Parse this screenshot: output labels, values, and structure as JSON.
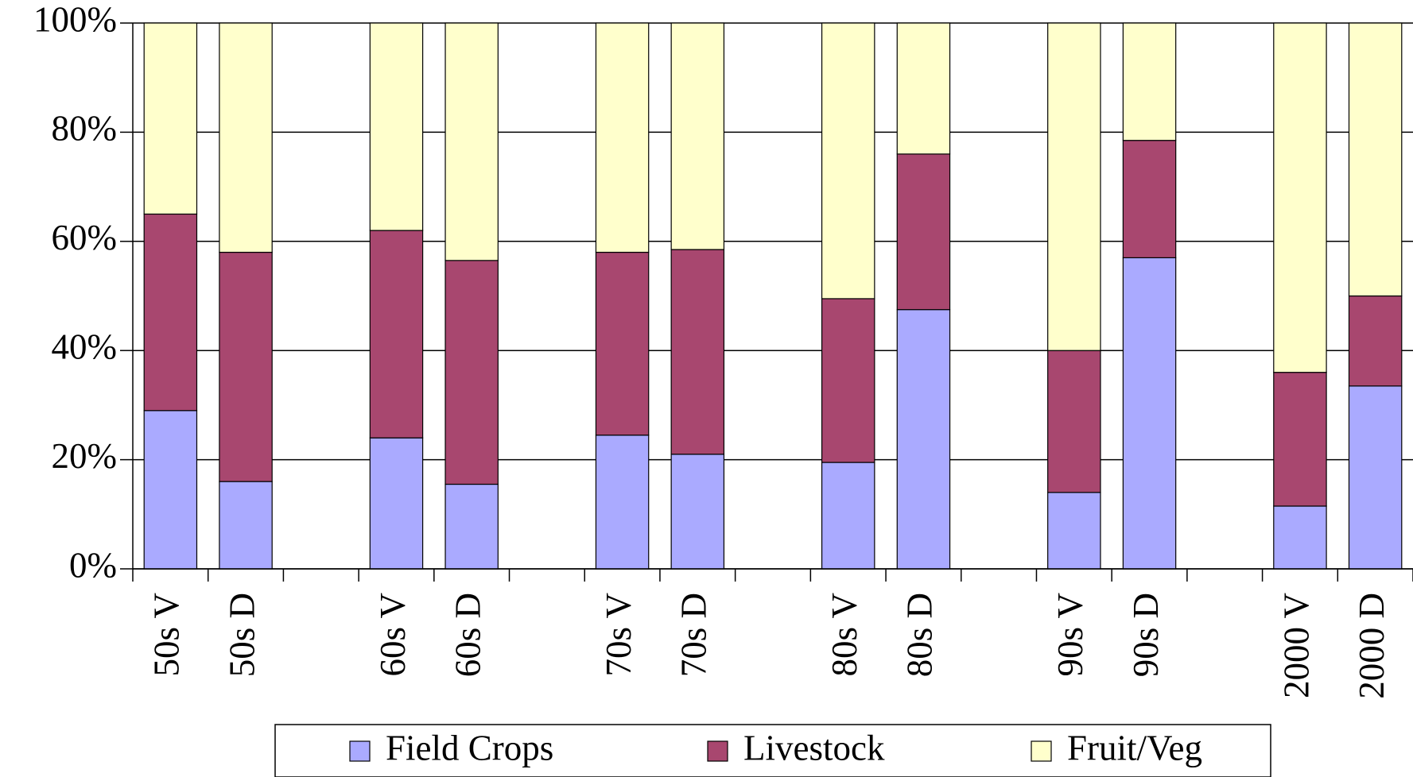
{
  "chart_data": {
    "type": "stacked_bar",
    "categories": [
      "50s V",
      "50s D",
      null,
      "60s V",
      "60s D",
      null,
      "70s V",
      "70s D",
      null,
      "80s V",
      "80s D",
      null,
      "90s V",
      "90s D",
      null,
      "2000 V",
      "2000 D"
    ],
    "series": [
      {
        "name": "Field Crops",
        "color": "#aaaaff",
        "values": [
          29,
          16,
          null,
          24,
          15.5,
          null,
          24.5,
          21,
          null,
          19.5,
          47.5,
          null,
          14,
          57,
          null,
          11.5,
          33.5
        ]
      },
      {
        "name": "Livestock",
        "color": "#a8476f",
        "values": [
          36,
          42,
          null,
          38,
          41,
          null,
          33.5,
          37.5,
          null,
          30,
          28.5,
          null,
          26,
          21.5,
          null,
          24.5,
          16.5
        ]
      },
      {
        "name": "Fruit/Veg",
        "color": "#ffffcc",
        "values": [
          35,
          42,
          null,
          38,
          43.5,
          null,
          42,
          41.5,
          null,
          50.5,
          24,
          null,
          60,
          21.5,
          null,
          64,
          50
        ]
      }
    ],
    "ylim": [
      0,
      100
    ],
    "yticks": [
      {
        "value": 0,
        "label": "0%"
      },
      {
        "value": 20,
        "label": "20%"
      },
      {
        "value": 40,
        "label": "40%"
      },
      {
        "value": 60,
        "label": "60%"
      },
      {
        "value": 80,
        "label": "80%"
      },
      {
        "value": 100,
        "label": "100%"
      }
    ],
    "grid": true,
    "legend": "bottom"
  }
}
